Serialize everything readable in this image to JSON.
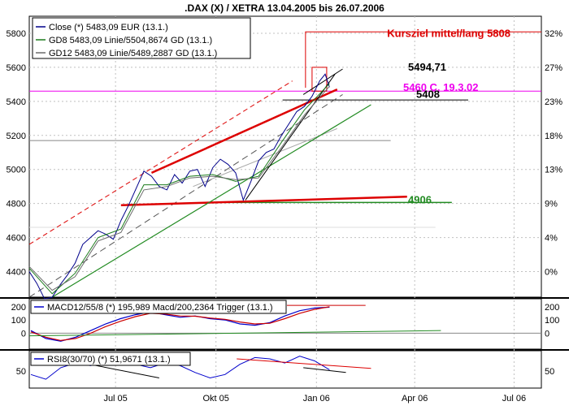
{
  "title": ".DAX (X) / XETRA 13.04.2005 bis 26.07.2006",
  "x_ticks": [
    "Jul 05",
    "Okt 05",
    "Jan 06",
    "Apr 06",
    "Jul 06"
  ],
  "colors": {
    "close": "#00008b",
    "gd8": "#1a7a1a",
    "gd12": "#6b6b6b",
    "trend_red": "#dd0000",
    "support_green": "#228b22",
    "magenta": "#ee00ee",
    "black": "#000000",
    "grid": "#c0c0c0",
    "macd": "#0000cc",
    "trigger": "#cc0000"
  },
  "chart_data": [
    {
      "type": "line",
      "name": "price",
      "legend": [
        "Close (*) 5483,09 EUR (13.1.)",
        "GD8 5483,09 Linie/5504,8674 GD (13.1.)",
        "GD12 5483,09 Linie/5489,2887 GD (13.1.)"
      ],
      "ylim": [
        4250,
        5900
      ],
      "y_ticks": [
        4400,
        4600,
        4800,
        5000,
        5200,
        5400,
        5600,
        5800
      ],
      "y2_ticks": [
        "0%",
        "4%",
        "9%",
        "13%",
        "18%",
        "23%",
        "27%",
        "32%"
      ],
      "x_months": [
        "2005-04-13",
        "2006-07-26"
      ],
      "series": [
        {
          "id": "close",
          "name": "Close (*) 5483,09 EUR (13.1.)",
          "x": [
            "2005-04-13",
            "2005-04-20",
            "2005-04-27",
            "2005-05-04",
            "2005-05-11",
            "2005-05-18",
            "2005-05-25",
            "2005-06-01",
            "2005-06-08",
            "2005-06-15",
            "2005-06-22",
            "2005-06-29",
            "2005-07-06",
            "2005-07-13",
            "2005-07-20",
            "2005-07-27",
            "2005-08-03",
            "2005-08-10",
            "2005-08-17",
            "2005-08-24",
            "2005-08-31",
            "2005-09-07",
            "2005-09-14",
            "2005-09-21",
            "2005-09-28",
            "2005-10-05",
            "2005-10-12",
            "2005-10-19",
            "2005-10-26",
            "2005-11-02",
            "2005-11-09",
            "2005-11-16",
            "2005-11-23",
            "2005-11-30",
            "2005-12-07",
            "2005-12-14",
            "2005-12-21",
            "2005-12-28",
            "2006-01-04",
            "2006-01-09",
            "2006-01-13"
          ],
          "values": [
            4400,
            4330,
            4240,
            4250,
            4320,
            4380,
            4450,
            4560,
            4600,
            4640,
            4620,
            4590,
            4700,
            4790,
            4890,
            4990,
            4960,
            4900,
            4880,
            4970,
            4920,
            4990,
            5000,
            4900,
            5010,
            5060,
            5030,
            4980,
            4820,
            4930,
            5050,
            5100,
            5120,
            5200,
            5270,
            5340,
            5370,
            5430,
            5520,
            5560,
            5483
          ]
        },
        {
          "id": "gd8",
          "name": "GD8 5483,09 Linie/5504,8674 GD (13.1.)",
          "x": [
            "2005-04-13",
            "2005-05-04",
            "2005-05-25",
            "2005-06-15",
            "2005-07-06",
            "2005-07-27",
            "2005-08-17",
            "2005-09-07",
            "2005-09-28",
            "2005-10-19",
            "2005-11-09",
            "2005-11-30",
            "2005-12-21",
            "2006-01-13"
          ],
          "values": [
            4420,
            4270,
            4390,
            4600,
            4650,
            4910,
            4910,
            4960,
            4970,
            4930,
            4960,
            5160,
            5350,
            5505
          ]
        },
        {
          "id": "gd12",
          "name": "GD12 5483,09 Linie/5489,2887 GD (13.1.)",
          "x": [
            "2005-04-13",
            "2005-05-04",
            "2005-05-25",
            "2005-06-15",
            "2005-07-06",
            "2005-07-27",
            "2005-08-17",
            "2005-09-07",
            "2005-09-28",
            "2005-10-19",
            "2005-11-09",
            "2005-11-30",
            "2005-12-21",
            "2006-01-13"
          ],
          "values": [
            4430,
            4290,
            4370,
            4580,
            4630,
            4880,
            4900,
            4950,
            4960,
            4940,
            4950,
            5130,
            5320,
            5489
          ]
        }
      ],
      "annotations": [
        {
          "label": "Kursziel mittel/lang 5808",
          "value": 5808,
          "color": "#dd0000"
        },
        {
          "label": "5494,71",
          "value": 5494.71,
          "color": "#000000"
        },
        {
          "label": "5460 C. 19.3.02",
          "value": 5460,
          "color": "#ee00ee"
        },
        {
          "label": "5408",
          "value": 5408,
          "color": "#000000"
        },
        {
          "label": "4906",
          "value": 4906,
          "color": "#228b22"
        }
      ],
      "trendlines": [
        {
          "color": "#dd0000",
          "x": [
            "2005-08-03",
            "2006-01-20"
          ],
          "y": [
            4980,
            5470
          ]
        },
        {
          "color": "#dd0000",
          "x": [
            "2005-07-06",
            "2006-03-25"
          ],
          "y": [
            4790,
            4840
          ]
        },
        {
          "color": "#228b22",
          "x": [
            "2005-05-04",
            "2006-02-20"
          ],
          "y": [
            4250,
            5380
          ]
        }
      ]
    },
    {
      "type": "line",
      "name": "macd",
      "legend": [
        "MACD12/55/8 (*) 195,989 Macd/200,2364 Trigger (13.1.)"
      ],
      "ylim": [
        -120,
        260
      ],
      "y_ticks": [
        0,
        100,
        200
      ],
      "series": [
        {
          "id": "macd",
          "values": [
            20,
            -40,
            -60,
            -30,
            20,
            70,
            110,
            140,
            160,
            140,
            120,
            130,
            110,
            100,
            70,
            60,
            80,
            130,
            170,
            190,
            196
          ]
        },
        {
          "id": "trigger",
          "values": [
            10,
            -30,
            -55,
            -40,
            0,
            50,
            90,
            125,
            150,
            145,
            130,
            128,
            115,
            105,
            85,
            70,
            75,
            110,
            150,
            180,
            200
          ]
        }
      ]
    },
    {
      "type": "line",
      "name": "rsi",
      "legend": [
        "RSI8(30/70) (*) 51,9671 (13.1.)"
      ],
      "ylim": [
        25,
        80
      ],
      "y_ticks": [
        50
      ],
      "series": [
        {
          "id": "rsi",
          "values": [
            45,
            38,
            55,
            62,
            58,
            66,
            70,
            60,
            55,
            62,
            58,
            48,
            40,
            45,
            60,
            70,
            68,
            62,
            72,
            65,
            52
          ]
        }
      ]
    }
  ]
}
